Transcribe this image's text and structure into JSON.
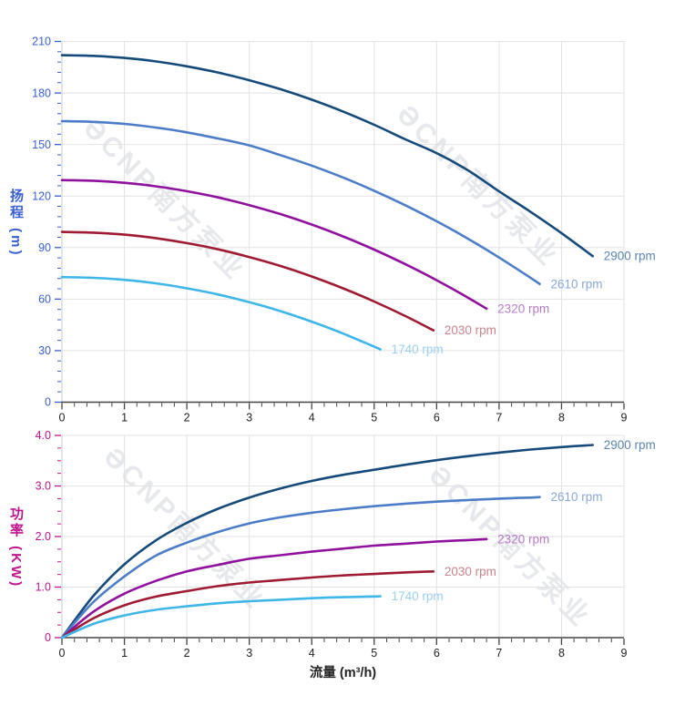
{
  "watermark": {
    "text": "ƏCNP南方泵业"
  },
  "axes": {
    "xlabel": "流量 (m³/h)",
    "x_tick_labels": [
      "0",
      "1",
      "2",
      "3",
      "4",
      "5",
      "6",
      "7",
      "8",
      "9"
    ],
    "x_tick_color": "#222222",
    "x_axis_line_color": "#444444",
    "grid_color": "#e2e2e2",
    "left_axis_line_color": "#c9c9c9"
  },
  "chart_data": [
    {
      "type": "line",
      "title": "",
      "ylabel": "扬程 (m)",
      "xlabel": "流量 (m³/h)",
      "xlim": [
        0,
        9
      ],
      "ylim": [
        0,
        210
      ],
      "grid": true,
      "legend_position": "at-line-ends",
      "axis_color": "#3a5fd0",
      "yticks": [
        0,
        30,
        60,
        90,
        120,
        150,
        180,
        210
      ],
      "ytick_labels": [
        "0",
        "30",
        "60",
        "90",
        "120",
        "150",
        "180",
        "210"
      ],
      "xticks": [
        0,
        1,
        2,
        3,
        4,
        5,
        6,
        7,
        8,
        9
      ],
      "x_minor_per_major": 4,
      "y_minor_per_major": 4,
      "series": [
        {
          "name": "2900 rpm",
          "rpm": 2900,
          "color": "#164a7b",
          "label_color": "#5d83b0",
          "x": [
            0,
            0.5,
            1,
            1.5,
            2,
            2.5,
            3,
            3.5,
            4,
            4.5,
            5,
            5.5,
            6,
            6.5,
            7,
            7.5,
            8,
            8.5
          ],
          "y": [
            202,
            201.6,
            200.4,
            198.4,
            195.5,
            191.9,
            187.4,
            182.2,
            176.1,
            169.2,
            161.5,
            153,
            145,
            135,
            122.7,
            110.9,
            98.4,
            85
          ]
        },
        {
          "name": "2610 rpm",
          "rpm": 2610,
          "color": "#4d7dc8",
          "label_color": "#8aa6d8",
          "x": [
            0,
            0.5,
            1,
            1.5,
            2,
            2.5,
            3,
            3.5,
            4,
            4.5,
            5,
            5.5,
            6,
            6.5,
            7,
            7.5,
            7.65
          ],
          "y": [
            163.6,
            163.2,
            162,
            159.9,
            157.1,
            153.5,
            149.5,
            143.8,
            137.7,
            130.8,
            123.1,
            114.6,
            105.3,
            95.2,
            84.2,
            72.5,
            68.8
          ]
        },
        {
          "name": "2320 rpm",
          "rpm": 2320,
          "color": "#8f119d",
          "label_color": "#b77cc4",
          "x": [
            0,
            0.5,
            1,
            1.5,
            2,
            2.5,
            3,
            3.5,
            4,
            4.5,
            5,
            5.5,
            6,
            6.5,
            6.8
          ],
          "y": [
            129.3,
            128.9,
            127.7,
            125.7,
            122.8,
            119.2,
            114.7,
            109.5,
            103.4,
            96.5,
            88.8,
            80.3,
            71,
            60.9,
            54.4
          ]
        },
        {
          "name": "2030 rpm",
          "rpm": 2030,
          "color": "#9e1b33",
          "label_color": "#c9848e",
          "x": [
            0,
            0.5,
            1,
            1.5,
            2,
            2.5,
            3,
            3.5,
            4,
            4.5,
            5,
            5.5,
            5.95
          ],
          "y": [
            99.1,
            98.7,
            97.5,
            95.5,
            92.6,
            89,
            84.5,
            79.3,
            73.2,
            66.3,
            58.6,
            50.1,
            41.8
          ]
        },
        {
          "name": "1740 rpm",
          "rpm": 1740,
          "color": "#3fb6e8",
          "label_color": "#9dcfec",
          "x": [
            0,
            0.5,
            1,
            1.5,
            2,
            2.5,
            3,
            3.5,
            4,
            4.5,
            5,
            5.1
          ],
          "y": [
            72.8,
            72.4,
            71.2,
            69.2,
            66.3,
            62.7,
            58.2,
            53,
            46.9,
            40,
            32.3,
            30.7
          ]
        }
      ]
    },
    {
      "type": "line",
      "title": "",
      "ylabel": "功率 (KW)",
      "xlabel": "流量 (m³/h)",
      "xlim": [
        0,
        9
      ],
      "ylim": [
        0,
        4
      ],
      "grid": true,
      "legend_position": "at-line-ends",
      "axis_color": "#c0148c",
      "yticks": [
        0,
        1,
        2,
        3,
        4
      ],
      "ytick_labels": [
        "0",
        "1.0",
        "2.0",
        "3.0",
        "4.0"
      ],
      "xticks": [
        0,
        1,
        2,
        3,
        4,
        5,
        6,
        7,
        8,
        9
      ],
      "x_minor_per_major": 4,
      "y_minor_per_major": 3,
      "series": [
        {
          "name": "2900 rpm",
          "rpm": 2900,
          "color": "#164a7b",
          "label_color": "#5d83b0",
          "x": [
            0,
            0.5,
            1,
            1.5,
            2,
            2.5,
            3,
            3.5,
            4,
            4.5,
            5,
            5.5,
            6,
            6.5,
            7,
            7.5,
            8,
            8.5
          ],
          "y": [
            0,
            0.82,
            1.45,
            1.92,
            2.27,
            2.55,
            2.77,
            2.95,
            3.1,
            3.22,
            3.32,
            3.42,
            3.51,
            3.59,
            3.66,
            3.72,
            3.77,
            3.81
          ]
        },
        {
          "name": "2610 rpm",
          "rpm": 2610,
          "color": "#4d7dc8",
          "label_color": "#8aa6d8",
          "x": [
            0,
            0.5,
            1,
            1.5,
            2,
            2.5,
            3,
            3.5,
            4,
            4.5,
            5,
            5.5,
            6,
            6.5,
            7,
            7.5,
            7.65
          ],
          "y": [
            0,
            0.7,
            1.21,
            1.62,
            1.88,
            2.09,
            2.26,
            2.38,
            2.47,
            2.54,
            2.6,
            2.65,
            2.69,
            2.72,
            2.75,
            2.77,
            2.78
          ]
        },
        {
          "name": "2320 rpm",
          "rpm": 2320,
          "color": "#8f119d",
          "label_color": "#b77cc4",
          "x": [
            0,
            0.5,
            1,
            1.5,
            2,
            2.5,
            3,
            3.5,
            4,
            4.5,
            5,
            5.5,
            6,
            6.5,
            6.8
          ],
          "y": [
            0,
            0.51,
            0.87,
            1.12,
            1.31,
            1.44,
            1.56,
            1.63,
            1.7,
            1.76,
            1.82,
            1.86,
            1.9,
            1.93,
            1.95
          ]
        },
        {
          "name": "2030 rpm",
          "rpm": 2030,
          "color": "#9e1b33",
          "label_color": "#c9848e",
          "x": [
            0,
            0.5,
            1,
            1.5,
            2,
            2.5,
            3,
            3.5,
            4,
            4.5,
            5,
            5.5,
            5.95
          ],
          "y": [
            0,
            0.38,
            0.64,
            0.81,
            0.92,
            1.02,
            1.09,
            1.14,
            1.19,
            1.23,
            1.26,
            1.29,
            1.31
          ]
        },
        {
          "name": "1740 rpm",
          "rpm": 1740,
          "color": "#3fb6e8",
          "label_color": "#9dcfec",
          "x": [
            0,
            0.5,
            1,
            1.5,
            2,
            2.5,
            3,
            3.5,
            4,
            4.5,
            5,
            5.1
          ],
          "y": [
            0,
            0.27,
            0.44,
            0.55,
            0.62,
            0.68,
            0.72,
            0.75,
            0.78,
            0.8,
            0.815,
            0.82
          ]
        }
      ]
    }
  ]
}
